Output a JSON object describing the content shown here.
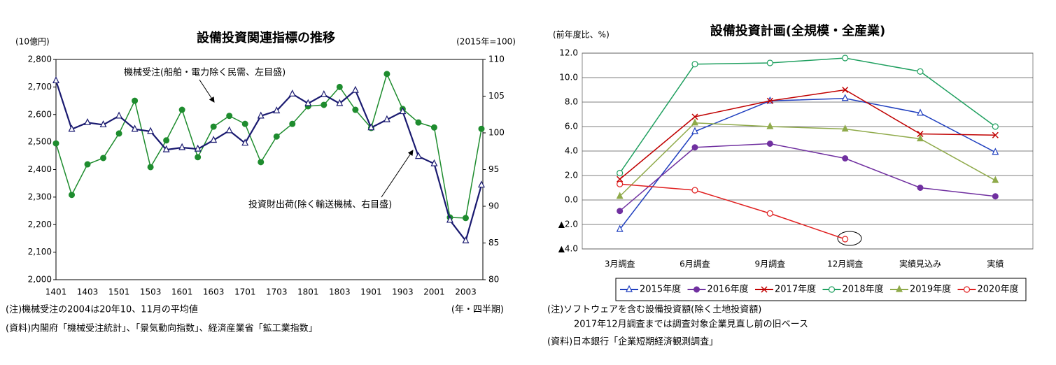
{
  "chart_data": [
    {
      "type": "line",
      "title": "設備投資関連指標の推移",
      "y_label": "(10億円)",
      "y2_label": "(2015年=100)",
      "x_label": "(年・四半期)",
      "categories": [
        "1401",
        null,
        "1403",
        null,
        "1501",
        null,
        "1503",
        null,
        "1601",
        null,
        "1603",
        null,
        "1701",
        null,
        "1703",
        null,
        "1801",
        null,
        "1803",
        null,
        "1901",
        null,
        "1903",
        null,
        "2001",
        null,
        "2003",
        null
      ],
      "series": [
        {
          "name": "機械受注(船舶・電力除く民需、左目盛)",
          "color": "#1e8c2e",
          "marker": "filled-circle",
          "axis": "y",
          "values": [
            2495,
            2308,
            2419,
            2442,
            2531,
            2650,
            2409,
            2506,
            2617,
            2445,
            2556,
            2595,
            2566,
            2427,
            2520,
            2566,
            2630,
            2635,
            2700,
            2617,
            2551,
            2747,
            2620,
            2571,
            2553,
            2226,
            2224,
            2548
          ]
        },
        {
          "name": "投資財出荷(除く輸送機械、右目盛)",
          "color": "#1a1a70",
          "marker": "open-triangle",
          "axis": "y2",
          "values": [
            107.1,
            100.5,
            101.4,
            101.1,
            102.3,
            100.5,
            100.2,
            97.7,
            98.0,
            97.8,
            99.0,
            100.3,
            98.6,
            102.3,
            103.0,
            105.3,
            104.0,
            105.2,
            104.0,
            105.8,
            100.7,
            101.8,
            102.9,
            96.8,
            95.8,
            88.1,
            85.3,
            92.9
          ]
        }
      ],
      "ylim": [
        2000,
        2800
      ],
      "yticks": [
        {
          "value": 2000,
          "label": "2,000"
        },
        {
          "value": 2100,
          "label": "2,100"
        },
        {
          "value": 2200,
          "label": "2,200"
        },
        {
          "value": 2300,
          "label": "2,300"
        },
        {
          "value": 2400,
          "label": "2,400"
        },
        {
          "value": 2500,
          "label": "2,500"
        },
        {
          "value": 2600,
          "label": "2,600"
        },
        {
          "value": 2700,
          "label": "2,700"
        },
        {
          "value": 2800,
          "label": "2,800"
        }
      ],
      "y2lim": [
        80,
        110
      ],
      "y2ticks": [
        80,
        85,
        90,
        95,
        100,
        105,
        110
      ],
      "grid": false,
      "notes": [
        "(注)機械受注の2004は20年10、11月の平均値",
        "(資料)内閣府「機械受注統計」、「景気動向指数」、経済産業省「鉱工業指数」"
      ]
    },
    {
      "type": "line",
      "title": "設備投資計画(全規模・全産業)",
      "y_label": "(前年度比、%)",
      "categories": [
        "3月調査",
        "6月調査",
        "9月調査",
        "12月調査",
        "実績見込み",
        "実績"
      ],
      "series": [
        {
          "name": "2015年度",
          "color": "#1f3fbf",
          "marker": "open-triangle",
          "values": [
            -2.4,
            5.6,
            8.1,
            8.3,
            7.1,
            3.9
          ]
        },
        {
          "name": "2016年度",
          "color": "#7030a0",
          "marker": "filled-circle",
          "values": [
            -0.9,
            4.3,
            4.6,
            3.4,
            1.0,
            0.3
          ]
        },
        {
          "name": "2017年度",
          "color": "#c00000",
          "marker": "cross",
          "values": [
            1.7,
            6.8,
            8.1,
            9.0,
            5.4,
            5.3
          ]
        },
        {
          "name": "2018年度",
          "color": "#20a060",
          "marker": "open-circle",
          "values": [
            2.2,
            11.1,
            11.2,
            11.6,
            10.5,
            6.0
          ]
        },
        {
          "name": "2019年度",
          "color": "#8faa4a",
          "marker": "filled-triangle",
          "values": [
            0.3,
            6.3,
            6.0,
            5.8,
            5.0,
            1.6
          ]
        },
        {
          "name": "2020年度",
          "color": "#e02020",
          "marker": "open-circle",
          "values": [
            1.3,
            0.8,
            -1.1,
            -3.2,
            null,
            null
          ]
        }
      ],
      "ylim": [
        -4,
        12
      ],
      "yticks": [
        {
          "value": -4,
          "label": "▲4.0"
        },
        {
          "value": -2,
          "label": "▲2.0"
        },
        {
          "value": 0,
          "label": "0.0"
        },
        {
          "value": 2,
          "label": "2.0"
        },
        {
          "value": 4,
          "label": "4.0"
        },
        {
          "value": 6,
          "label": "6.0"
        },
        {
          "value": 8,
          "label": "8.0"
        },
        {
          "value": 10,
          "label": "10.0"
        },
        {
          "value": 12,
          "label": "12.0"
        }
      ],
      "grid": true,
      "legend": "bottom",
      "notes": [
        "(注)ソフトウェアを含む設備投資額(除く土地投資額)",
        "2017年12月調査までは調査対象企業見直し前の旧ベース",
        "(資料)日本銀行「企業短期経済観測調査」"
      ]
    }
  ]
}
